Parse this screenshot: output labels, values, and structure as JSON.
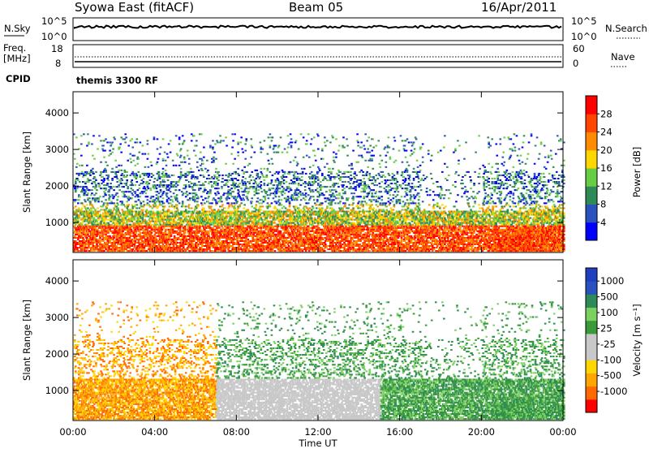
{
  "header": {
    "station": "Syowa East (fitACF)",
    "beam": "Beam 05",
    "date": "16/Apr/2011"
  },
  "top_panels": {
    "nsky_label": "N.Sky",
    "nsky_ticks": [
      "10^5",
      "10^0"
    ],
    "nsearch_label": "N.Search",
    "nsearch_ticks": [
      "10^5",
      "10^0"
    ],
    "freq_label": "Freq.",
    "freq_unit": "[MHz]",
    "freq_ticks": [
      "18",
      "8"
    ],
    "nave_label": "Nave",
    "nave_ticks": [
      "60",
      "0"
    ],
    "cpid_label": "CPID",
    "cpid_value": "themis 3300 RF"
  },
  "colors": {
    "power_scale": [
      "#0000ff",
      "#2a52be",
      "#2e8b57",
      "#66cd44",
      "#ffd700",
      "#ff8c00",
      "#ff4500",
      "#ff0000"
    ],
    "velocity_scale": [
      "#ff0000",
      "#ff6a00",
      "#ffa500",
      "#ffd700",
      "#c8c8c8",
      "#c8c8c8",
      "#3a9a3a",
      "#7bd160",
      "#2e8b57",
      "#2a52be",
      "#1f3fbf"
    ]
  },
  "chart_data": [
    {
      "type": "heatmap",
      "title": "",
      "ylabel": "Slant Range [km]",
      "xlabel": "",
      "x_ticks": [
        "00:00",
        "04:00",
        "08:00",
        "12:00",
        "16:00",
        "20:00",
        "00:00"
      ],
      "y_ticks": [
        "1000",
        "2000",
        "3000",
        "4000"
      ],
      "ylim": [
        180,
        4580
      ],
      "xlim_hours": [
        0,
        24
      ],
      "colorbar_label": "Power [dB]",
      "colorbar_ticks": [
        "4",
        "8",
        "12",
        "16",
        "20",
        "24",
        "28"
      ],
      "colorbar_range": [
        0,
        32
      ]
    },
    {
      "type": "heatmap",
      "title": "",
      "ylabel": "Slant Range [km]",
      "xlabel": "Time UT",
      "x_ticks": [
        "00:00",
        "04:00",
        "08:00",
        "12:00",
        "16:00",
        "20:00",
        "00:00"
      ],
      "y_ticks": [
        "1000",
        "2000",
        "3000",
        "4000"
      ],
      "ylim": [
        180,
        4580
      ],
      "xlim_hours": [
        0,
        24
      ],
      "colorbar_label": "Velocity [m s⁻¹]",
      "colorbar_ticks": [
        "1000",
        "500",
        "100",
        "25",
        "-25",
        "-100",
        "-500",
        "-1000"
      ]
    }
  ]
}
